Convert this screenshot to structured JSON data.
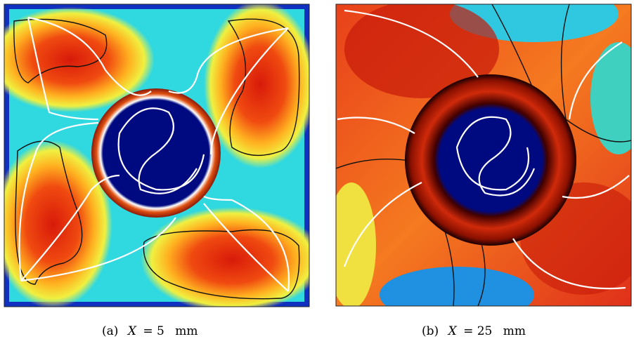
{
  "panels": [
    {
      "label": "(a)",
      "symbol": "X",
      "value": "= 5",
      "unit": "mm"
    },
    {
      "label": "(b)",
      "symbol": "X",
      "value": "= 25",
      "unit": "mm"
    }
  ]
}
